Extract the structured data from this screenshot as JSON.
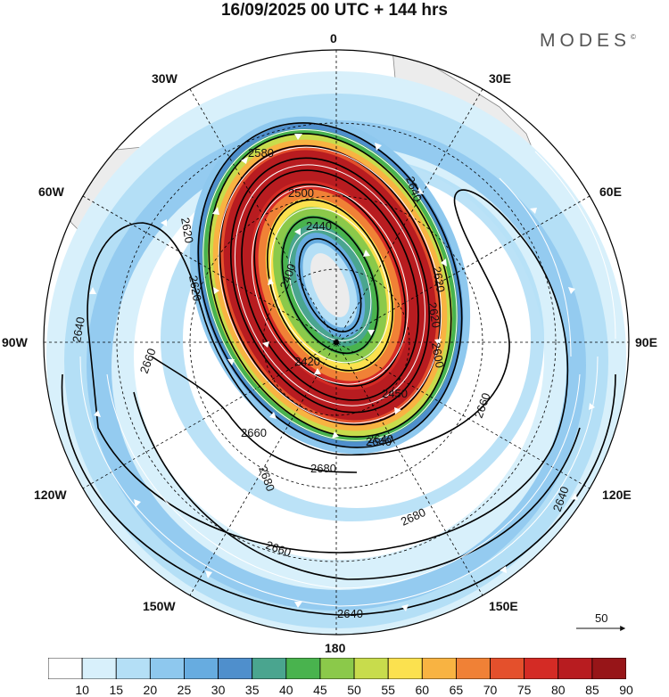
{
  "title": "16/09/2025  00 UTC  + 144 hrs",
  "brand": "MODES",
  "brand_mark": "©",
  "map": {
    "projection": "south-polar-stereographic",
    "longitude_labels": {
      "top": "0",
      "top_right": "30E",
      "upper_right": "60E",
      "right": "90E",
      "lower_right": "120E",
      "bottom_right": "150E",
      "bottom": "180",
      "bottom_left": "150W",
      "lower_left": "120W",
      "left": "90W",
      "upper_left": "60W",
      "top_left": "30W"
    },
    "contour_labels": [
      "2580",
      "2500",
      "2440",
      "2400",
      "2420",
      "2450",
      "2640",
      "2620",
      "2620",
      "2620",
      "2640",
      "2660",
      "2660",
      "2680",
      "2680",
      "2680",
      "2660",
      "2640",
      "2640",
      "2660",
      "2640",
      "2640",
      "2620",
      "2600"
    ],
    "reference_vector_label": "50",
    "colors": {
      "land": "#ececec",
      "coast": "#888888",
      "contour": "#000000",
      "grid": "#000000",
      "arrow": "#ffffff"
    }
  },
  "colorbar": {
    "ticks": [
      "10",
      "15",
      "20",
      "25",
      "30",
      "35",
      "40",
      "45",
      "50",
      "55",
      "60",
      "65",
      "70",
      "75",
      "80",
      "85",
      "90"
    ],
    "colors": [
      "#ffffff",
      "#d8f0fb",
      "#b4dff6",
      "#8ec8ee",
      "#67ace0",
      "#4f8fcc",
      "#4aa58f",
      "#49b34e",
      "#8bc94a",
      "#c8dc4c",
      "#fbe14f",
      "#f8b342",
      "#f08136",
      "#e4502c",
      "#d42b25",
      "#b81c20",
      "#971518"
    ]
  }
}
